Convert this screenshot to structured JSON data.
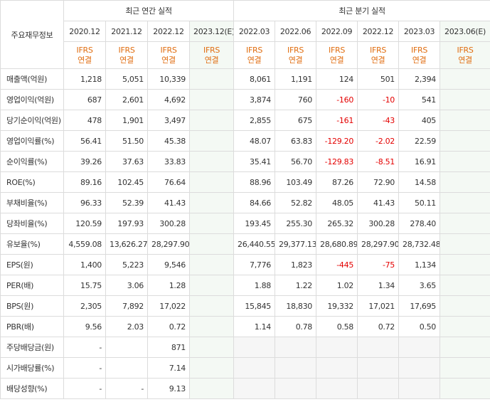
{
  "header": {
    "row_label": "주요재무정보",
    "annual_title": "최근 연간 실적",
    "quarter_title": "최근 분기 실적",
    "annual_periods": [
      "2020.12",
      "2021.12",
      "2022.12",
      "2023.12(E)"
    ],
    "quarter_periods": [
      "2022.03",
      "2022.06",
      "2022.09",
      "2022.12",
      "2023.03",
      "2023.06(E)"
    ],
    "type_line1": "IFRS",
    "type_line2": "연결"
  },
  "rows": [
    {
      "label": "매출액(억원)",
      "annual": [
        "1,218",
        "5,051",
        "10,339",
        ""
      ],
      "quarter": [
        "8,061",
        "1,191",
        "124",
        "501",
        "2,394",
        ""
      ]
    },
    {
      "label": "영업이익(억원)",
      "annual": [
        "687",
        "2,601",
        "4,692",
        ""
      ],
      "quarter": [
        "3,874",
        "760",
        "-160",
        "-10",
        "541",
        ""
      ]
    },
    {
      "label": "당기순이익(억원)",
      "annual": [
        "478",
        "1,901",
        "3,497",
        ""
      ],
      "quarter": [
        "2,855",
        "675",
        "-161",
        "-43",
        "405",
        ""
      ]
    },
    {
      "label": "영업이익률(%)",
      "annual": [
        "56.41",
        "51.50",
        "45.38",
        ""
      ],
      "quarter": [
        "48.07",
        "63.83",
        "-129.20",
        "-2.02",
        "22.59",
        ""
      ]
    },
    {
      "label": "순이익률(%)",
      "annual": [
        "39.26",
        "37.63",
        "33.83",
        ""
      ],
      "quarter": [
        "35.41",
        "56.70",
        "-129.83",
        "-8.51",
        "16.91",
        ""
      ]
    },
    {
      "label": "ROE(%)",
      "annual": [
        "89.16",
        "102.45",
        "76.64",
        ""
      ],
      "quarter": [
        "88.96",
        "103.49",
        "87.26",
        "72.90",
        "14.58",
        ""
      ]
    },
    {
      "label": "부채비율(%)",
      "annual": [
        "96.33",
        "52.39",
        "41.43",
        ""
      ],
      "quarter": [
        "84.66",
        "52.82",
        "48.05",
        "41.43",
        "50.11",
        ""
      ]
    },
    {
      "label": "당좌비율(%)",
      "annual": [
        "120.59",
        "197.93",
        "300.28",
        ""
      ],
      "quarter": [
        "193.45",
        "255.30",
        "265.32",
        "300.28",
        "278.40",
        ""
      ]
    },
    {
      "label": "유보율(%)",
      "annual": [
        "4,559.08",
        "13,626.27",
        "28,297.90",
        ""
      ],
      "quarter": [
        "26,440.55",
        "29,377.13",
        "28,680.89",
        "28,297.90",
        "28,732.48",
        ""
      ]
    },
    {
      "label": "EPS(원)",
      "annual": [
        "1,400",
        "5,223",
        "9,546",
        ""
      ],
      "quarter": [
        "7,776",
        "1,823",
        "-445",
        "-75",
        "1,134",
        ""
      ]
    },
    {
      "label": "PER(배)",
      "annual": [
        "15.75",
        "3.06",
        "1.28",
        ""
      ],
      "quarter": [
        "1.88",
        "1.22",
        "1.02",
        "1.34",
        "3.65",
        ""
      ]
    },
    {
      "label": "BPS(원)",
      "annual": [
        "2,305",
        "7,892",
        "17,022",
        ""
      ],
      "quarter": [
        "15,845",
        "18,830",
        "19,332",
        "17,021",
        "17,695",
        ""
      ]
    },
    {
      "label": "PBR(배)",
      "annual": [
        "9.56",
        "2.03",
        "0.72",
        ""
      ],
      "quarter": [
        "1.14",
        "0.78",
        "0.58",
        "0.72",
        "0.50",
        ""
      ]
    },
    {
      "label": "주당배당금(원)",
      "annual": [
        "-",
        "",
        "871",
        ""
      ],
      "quarter": [
        "",
        "",
        "",
        "",
        "",
        ""
      ]
    },
    {
      "label": "시가배당률(%)",
      "annual": [
        "-",
        "",
        "7.14",
        ""
      ],
      "quarter": [
        "",
        "",
        "",
        "",
        "",
        ""
      ]
    },
    {
      "label": "배당성향(%)",
      "annual": [
        "-",
        "-",
        "9.13",
        ""
      ],
      "quarter": [
        "",
        "",
        "",
        "",
        "",
        ""
      ]
    }
  ],
  "colors": {
    "negative": "#e40000",
    "ifrs": "#e06d10",
    "estimate_bg": "#f4f9f4"
  }
}
